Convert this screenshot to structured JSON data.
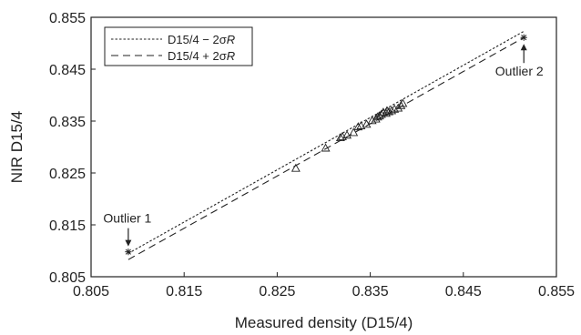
{
  "chart_data": {
    "type": "scatter",
    "title": "",
    "xlabel": "Measured density (D15/4)",
    "ylabel": "NIR D15/4",
    "xlim": [
      0.805,
      0.855
    ],
    "ylim": [
      0.805,
      0.855
    ],
    "xticks": [
      "0.805",
      "0.815",
      "0.825",
      "0.835",
      "0.845",
      "0.855"
    ],
    "yticks": [
      "0.805",
      "0.815",
      "0.825",
      "0.835",
      "0.845",
      "0.855"
    ],
    "grid": false,
    "legend": {
      "placement": "top-left",
      "entries": [
        {
          "label_main": "D15/4 − 2σ",
          "label_italic": "R",
          "style": "dotted"
        },
        {
          "label_main": "D15/4 + 2σ",
          "label_italic": "R",
          "style": "dashed"
        }
      ]
    },
    "series": [
      {
        "name": "D15/4 − 2σR",
        "style": "dotted",
        "x": [
          0.809,
          0.8515
        ],
        "y": [
          0.8095,
          0.8523
        ]
      },
      {
        "name": "D15/4 + 2σR",
        "style": "dashed",
        "x": [
          0.809,
          0.8515
        ],
        "y": [
          0.8083,
          0.8511
        ]
      },
      {
        "marker": "triangle",
        "x": [
          0.827,
          0.8302,
          0.8318,
          0.832,
          0.8325,
          0.8332,
          0.8337,
          0.834,
          0.8346,
          0.8352,
          0.8356,
          0.8358,
          0.836,
          0.8362,
          0.8364,
          0.8367,
          0.8368,
          0.837,
          0.8373,
          0.8376,
          0.838,
          0.8383,
          0.8385
        ],
        "y": [
          0.8259,
          0.8298,
          0.8318,
          0.832,
          0.8323,
          0.8328,
          0.8339,
          0.8341,
          0.8344,
          0.8351,
          0.8354,
          0.8358,
          0.836,
          0.8363,
          0.8367,
          0.8365,
          0.837,
          0.8368,
          0.837,
          0.8373,
          0.8375,
          0.838,
          0.8384
        ]
      },
      {
        "marker": "asterisk",
        "x": [
          0.809,
          0.8515
        ],
        "y": [
          0.8098,
          0.8511
        ]
      }
    ],
    "annotations": [
      {
        "text": "Outlier 1",
        "x": 0.809,
        "y": 0.8098,
        "label_side": "above"
      },
      {
        "text": "Outlier 2",
        "x": 0.8515,
        "y": 0.8511,
        "label_side": "below"
      }
    ]
  },
  "colors": {
    "ink": "#222222",
    "background": "#ffffff"
  }
}
